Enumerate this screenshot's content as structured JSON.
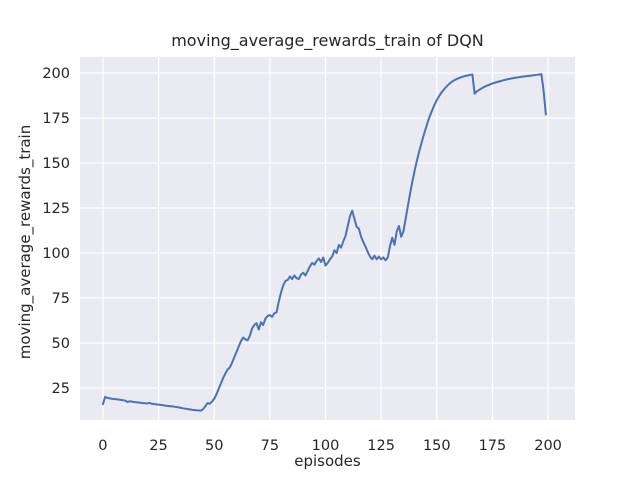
{
  "chart_data": {
    "type": "line",
    "title": "moving_average_rewards_train of DQN",
    "xlabel": "episodes",
    "ylabel": "moving_average_rewards_train",
    "x_ticks": [
      0,
      25,
      50,
      75,
      100,
      125,
      150,
      175,
      200
    ],
    "y_ticks": [
      25,
      50,
      75,
      100,
      125,
      150,
      175,
      200
    ],
    "xlim": [
      -10.3,
      212.1
    ],
    "ylim": [
      7.2,
      208.9
    ],
    "grid": true,
    "legend": false,
    "style": {
      "figure_background": "#ffffff",
      "axes_background": "#eaeaf2",
      "grid_color": "#ffffff",
      "line_color": "#4c72b0",
      "text_color": "#262626",
      "line_width": 2
    },
    "series": [
      {
        "name": "moving_average_rewards_train",
        "points": [
          [
            0,
            16
          ],
          [
            1,
            20
          ],
          [
            2,
            19.5
          ],
          [
            4,
            19
          ],
          [
            6,
            18.7
          ],
          [
            8,
            18.4
          ],
          [
            10,
            18
          ],
          [
            11,
            17.2
          ],
          [
            12,
            17.6
          ],
          [
            14,
            17.2
          ],
          [
            16,
            16.9
          ],
          [
            18,
            16.6
          ],
          [
            20,
            16.4
          ],
          [
            21,
            16.7
          ],
          [
            22,
            16.2
          ],
          [
            24,
            15.9
          ],
          [
            26,
            15.6
          ],
          [
            28,
            15.2
          ],
          [
            30,
            14.9
          ],
          [
            32,
            14.6
          ],
          [
            34,
            14.2
          ],
          [
            36,
            13.7
          ],
          [
            38,
            13.3
          ],
          [
            40,
            12.9
          ],
          [
            42,
            12.6
          ],
          [
            44,
            12.4
          ],
          [
            45,
            13.2
          ],
          [
            46,
            14.8
          ],
          [
            47,
            16.6
          ],
          [
            48,
            16.2
          ],
          [
            49,
            17.4
          ],
          [
            50,
            19
          ],
          [
            51,
            21.5
          ],
          [
            52,
            24.5
          ],
          [
            53,
            27.5
          ],
          [
            54,
            30.5
          ],
          [
            55,
            33
          ],
          [
            56,
            35.2
          ],
          [
            57,
            36.4
          ],
          [
            58,
            39
          ],
          [
            59,
            42
          ],
          [
            60,
            45
          ],
          [
            61,
            48
          ],
          [
            62,
            51
          ],
          [
            63,
            53
          ],
          [
            64,
            52
          ],
          [
            65,
            51.5
          ],
          [
            66,
            54
          ],
          [
            67,
            58
          ],
          [
            68,
            60
          ],
          [
            69,
            61
          ],
          [
            70,
            57.5
          ],
          [
            71,
            61.5
          ],
          [
            72,
            60
          ],
          [
            73,
            63.5
          ],
          [
            74,
            65
          ],
          [
            75,
            65.5
          ],
          [
            76,
            64.5
          ],
          [
            77,
            66.5
          ],
          [
            78,
            67
          ],
          [
            79,
            73
          ],
          [
            80,
            78
          ],
          [
            81,
            82
          ],
          [
            82,
            84.5
          ],
          [
            83,
            85
          ],
          [
            84,
            87
          ],
          [
            85,
            85.5
          ],
          [
            86,
            87.5
          ],
          [
            87,
            86
          ],
          [
            88,
            85.5
          ],
          [
            89,
            88
          ],
          [
            90,
            89
          ],
          [
            91,
            87.5
          ],
          [
            92,
            90
          ],
          [
            93,
            92.5
          ],
          [
            94,
            94.5
          ],
          [
            95,
            93.5
          ],
          [
            96,
            95.5
          ],
          [
            97,
            97
          ],
          [
            98,
            95
          ],
          [
            99,
            97.5
          ],
          [
            100,
            93
          ],
          [
            101,
            94.5
          ],
          [
            102,
            96.5
          ],
          [
            103,
            98
          ],
          [
            104,
            101.5
          ],
          [
            105,
            100
          ],
          [
            106,
            104.5
          ],
          [
            107,
            103
          ],
          [
            108,
            106.5
          ],
          [
            109,
            109.5
          ],
          [
            110,
            115
          ],
          [
            111,
            120.5
          ],
          [
            112,
            123.5
          ],
          [
            113,
            119
          ],
          [
            114,
            114.5
          ],
          [
            115,
            113.5
          ],
          [
            116,
            109
          ],
          [
            117,
            106
          ],
          [
            118,
            103.5
          ],
          [
            119,
            100.5
          ],
          [
            120,
            98
          ],
          [
            121,
            96.5
          ],
          [
            122,
            98.5
          ],
          [
            123,
            96.5
          ],
          [
            124,
            98
          ],
          [
            125,
            96.5
          ],
          [
            126,
            97.5
          ],
          [
            127,
            96
          ],
          [
            128,
            97.5
          ],
          [
            129,
            104
          ],
          [
            130,
            108.5
          ],
          [
            131,
            104.5
          ],
          [
            132,
            112
          ],
          [
            133,
            115
          ],
          [
            134,
            109
          ],
          [
            135,
            112
          ],
          [
            136,
            119
          ],
          [
            137,
            126
          ],
          [
            138,
            133
          ],
          [
            139,
            139.5
          ],
          [
            140,
            145.5
          ],
          [
            141,
            151
          ],
          [
            142,
            156
          ],
          [
            143,
            160.5
          ],
          [
            144,
            165
          ],
          [
            145,
            169
          ],
          [
            146,
            173
          ],
          [
            147,
            176.5
          ],
          [
            148,
            179.5
          ],
          [
            149,
            182.5
          ],
          [
            150,
            185
          ],
          [
            151,
            187
          ],
          [
            152,
            189
          ],
          [
            153,
            190.5
          ],
          [
            154,
            192
          ],
          [
            155,
            193.3
          ],
          [
            156,
            194.4
          ],
          [
            157,
            195.3
          ],
          [
            158,
            196.1
          ],
          [
            159,
            196.7
          ],
          [
            160,
            197.2
          ],
          [
            161,
            197.7
          ],
          [
            162,
            198.1
          ],
          [
            163,
            198.4
          ],
          [
            164,
            198.7
          ],
          [
            165,
            199
          ],
          [
            166,
            199.2
          ],
          [
            167,
            188.5
          ],
          [
            168,
            189.8
          ],
          [
            169,
            190.6
          ],
          [
            170,
            191.4
          ],
          [
            172,
            192.7
          ],
          [
            174,
            193.7
          ],
          [
            176,
            194.6
          ],
          [
            178,
            195.3
          ],
          [
            180,
            196
          ],
          [
            182,
            196.6
          ],
          [
            184,
            197.1
          ],
          [
            186,
            197.5
          ],
          [
            188,
            197.9
          ],
          [
            190,
            198.2
          ],
          [
            192,
            198.5
          ],
          [
            194,
            198.8
          ],
          [
            195,
            199
          ],
          [
            196,
            199.2
          ],
          [
            197,
            199.4
          ],
          [
            198,
            190
          ],
          [
            199,
            177
          ]
        ]
      }
    ]
  }
}
